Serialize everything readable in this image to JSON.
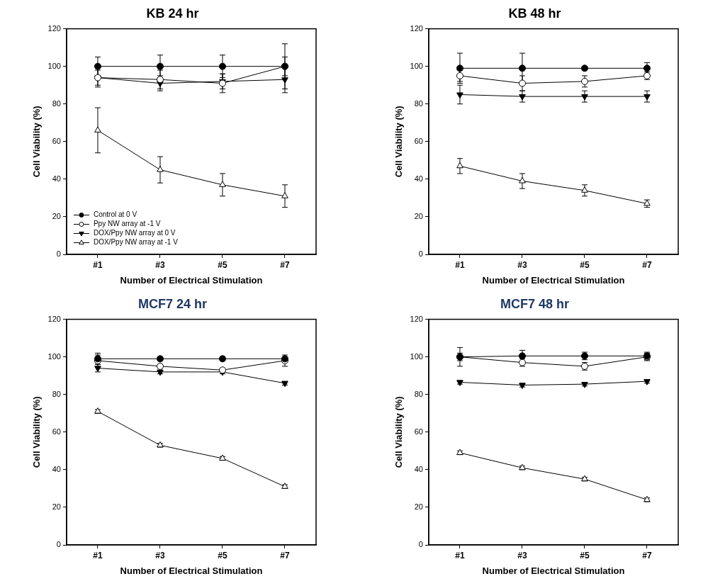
{
  "chart_data": [
    {
      "type": "line",
      "title": "KB 24 hr",
      "x_label": "Number of Electrical Stimulation",
      "y_label": "Cell Viability (%)",
      "categories": [
        "#1",
        "#3",
        "#5",
        "#7"
      ],
      "ylim": [
        0,
        120
      ],
      "yticks": [
        0,
        20,
        40,
        60,
        80,
        100,
        120
      ],
      "grid": false,
      "legend": "lower left",
      "series": [
        {
          "name": "Control at 0 V",
          "color": "#000000",
          "marker": "circle",
          "values": [
            100,
            100,
            100,
            100
          ],
          "errors": [
            5,
            6,
            6,
            5
          ]
        },
        {
          "name": "Ppy NW array at -1 V",
          "color": "#000000",
          "marker": "circle_open",
          "values": [
            94,
            93,
            91,
            100
          ],
          "errors": [
            5,
            5,
            5,
            12
          ]
        },
        {
          "name": "DOX/Ppy NW array at 0 V",
          "color": "#000000",
          "marker": "triangle_down",
          "values": [
            94,
            91,
            92,
            93
          ],
          "errors": [
            4,
            4,
            4,
            7
          ]
        },
        {
          "name": "DOX/Ppy NW array at -1 V",
          "color": "#000000",
          "marker": "triangle_open",
          "values": [
            66,
            45,
            37,
            31
          ],
          "errors": [
            12,
            7,
            6,
            6
          ]
        }
      ]
    },
    {
      "type": "line",
      "title": "KB 48 hr",
      "x_label": "Number of Electrical Stimulation",
      "y_label": "Cell Viability (%)",
      "categories": [
        "#1",
        "#3",
        "#5",
        "#7"
      ],
      "ylim": [
        0,
        120
      ],
      "yticks": [
        0,
        20,
        40,
        60,
        80,
        100,
        120
      ],
      "grid": false,
      "series": [
        {
          "name": "Control at 0 V",
          "color": "#000000",
          "marker": "circle",
          "values": [
            99,
            99,
            99,
            99
          ],
          "errors": [
            8,
            8,
            1,
            3
          ]
        },
        {
          "name": "Ppy NW array at -1 V",
          "color": "#000000",
          "marker": "circle_open",
          "values": [
            95,
            91,
            92,
            95
          ],
          "errors": [
            3,
            4,
            3,
            2
          ]
        },
        {
          "name": "DOX/Ppy NW array at 0 V",
          "color": "#000000",
          "marker": "triangle_down",
          "values": [
            85,
            84,
            84,
            84
          ],
          "errors": [
            5,
            3,
            3,
            3
          ]
        },
        {
          "name": "DOX/Ppy NW array at -1 V",
          "color": "#000000",
          "marker": "triangle_open",
          "values": [
            47,
            39,
            34,
            27
          ],
          "errors": [
            4,
            4,
            3,
            2
          ]
        }
      ]
    },
    {
      "type": "line",
      "title": "MCF7 24 hr",
      "x_label": "Number of Electrical Stimulation",
      "y_label": "Cell Viability (%)",
      "categories": [
        "#1",
        "#3",
        "#5",
        "#7"
      ],
      "ylim": [
        0,
        120
      ],
      "yticks": [
        0,
        20,
        40,
        60,
        80,
        100,
        120
      ],
      "grid": false,
      "series": [
        {
          "name": "Control at 0 V",
          "color": "#000000",
          "marker": "circle",
          "values": [
            99,
            99,
            99,
            99
          ],
          "errors": [
            3,
            1,
            1,
            1
          ]
        },
        {
          "name": "Ppy NW array at -1 V",
          "color": "#000000",
          "marker": "circle_open",
          "values": [
            98,
            95,
            93,
            98
          ],
          "errors": [
            3,
            1,
            1,
            3
          ]
        },
        {
          "name": "DOX/Ppy NW array at 0 V",
          "color": "#000000",
          "marker": "triangle_down",
          "values": [
            94,
            92,
            92,
            86
          ],
          "errors": [
            2,
            1,
            1,
            1
          ]
        },
        {
          "name": "DOX/Ppy NW array at -1 V",
          "color": "#000000",
          "marker": "triangle_open",
          "values": [
            71,
            53,
            46,
            31
          ],
          "errors": [
            1,
            1,
            1,
            1
          ]
        }
      ]
    },
    {
      "type": "line",
      "title": "MCF7 48 hr",
      "x_label": "Number of Electrical Stimulation",
      "y_label": "Cell Viability (%)",
      "categories": [
        "#1",
        "#3",
        "#5",
        "#7"
      ],
      "ylim": [
        0,
        120
      ],
      "yticks": [
        0,
        20,
        40,
        60,
        80,
        100,
        120
      ],
      "grid": false,
      "series": [
        {
          "name": "Control at 0 V",
          "color": "#000000",
          "marker": "circle",
          "values": [
            100,
            100.5,
            100.5,
            100.5
          ],
          "errors": [
            5,
            3,
            2,
            2
          ]
        },
        {
          "name": "Ppy NW array at -1 V",
          "color": "#000000",
          "marker": "circle_open",
          "values": [
            100,
            97,
            95,
            100
          ],
          "errors": [
            2,
            2,
            2,
            2
          ]
        },
        {
          "name": "DOX/Ppy NW array at 0 V",
          "color": "#000000",
          "marker": "triangle_down",
          "values": [
            86.5,
            85,
            85.5,
            87
          ],
          "errors": [
            1,
            1,
            1,
            1
          ]
        },
        {
          "name": "DOX/Ppy NW array at -1 V",
          "color": "#000000",
          "marker": "triangle_open",
          "values": [
            49,
            41,
            35,
            24
          ],
          "errors": [
            1,
            1,
            1,
            1
          ]
        }
      ]
    }
  ]
}
